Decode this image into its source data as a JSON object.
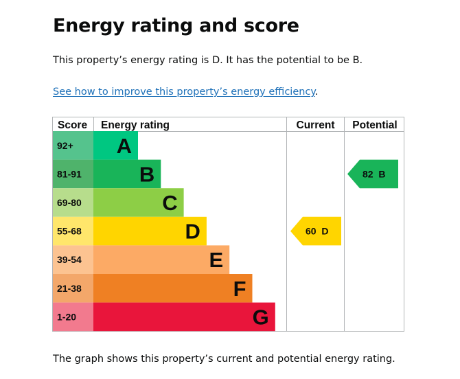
{
  "page": {
    "heading": "Energy rating and score",
    "intro": "This property’s energy rating is D. It has the potential to be B.",
    "link_text": "See how to improve this property’s energy efficiency",
    "link_trailing": ".",
    "footer": "The graph shows this property’s current and potential energy rating."
  },
  "chart_data": {
    "type": "table",
    "headers": {
      "score": "Score",
      "rating": "Energy rating",
      "current": "Current",
      "potential": "Potential"
    },
    "bands": [
      {
        "score": "92+",
        "letter": "A",
        "score_color": "#55c38d",
        "bar_color": "#00c781"
      },
      {
        "score": "81-91",
        "letter": "B",
        "score_color": "#4fb36b",
        "bar_color": "#19b459"
      },
      {
        "score": "69-80",
        "letter": "C",
        "score_color": "#b7dd8c",
        "bar_color": "#8dce46"
      },
      {
        "score": "55-68",
        "letter": "D",
        "score_color": "#ffe66b",
        "bar_color": "#ffd500"
      },
      {
        "score": "39-54",
        "letter": "E",
        "score_color": "#fcc391",
        "bar_color": "#fcaa65"
      },
      {
        "score": "21-38",
        "letter": "F",
        "score_color": "#f3a76a",
        "bar_color": "#ef8023"
      },
      {
        "score": "1-20",
        "letter": "G",
        "score_color": "#f27a8e",
        "bar_color": "#e9153b"
      }
    ],
    "current": {
      "score": 60,
      "band": "D",
      "label": "60  D",
      "color": "#ffd500"
    },
    "potential": {
      "score": 82,
      "band": "B",
      "label": "82  B",
      "color": "#19b459"
    }
  }
}
